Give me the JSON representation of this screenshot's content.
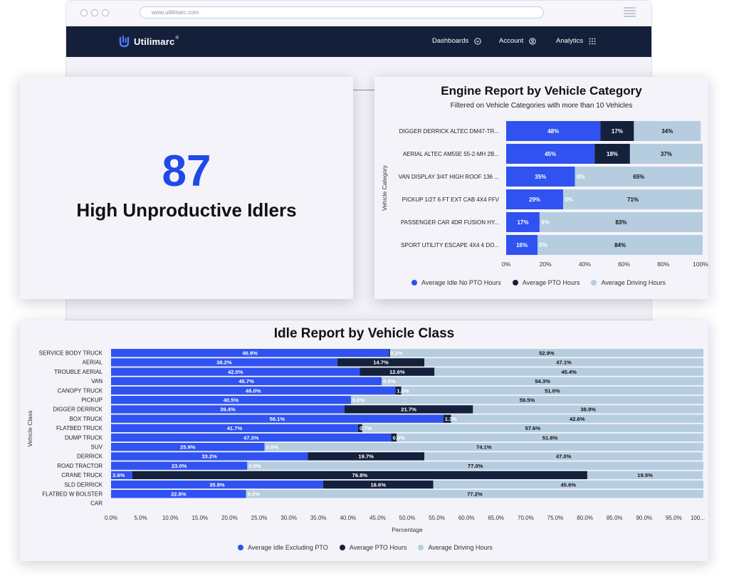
{
  "browser": {
    "url": "www.utilimarc.com"
  },
  "navbar": {
    "brand": "Utilimarc",
    "items": [
      {
        "label": "Dashboards"
      },
      {
        "label": "Account"
      },
      {
        "label": "Analytics"
      }
    ]
  },
  "kpi": {
    "value": "87",
    "label": "High Unproductive Idlers"
  },
  "colors": {
    "idle": "#2f52f0",
    "pto": "#13213d",
    "driving": "#b6cde0",
    "navbar": "#14203a",
    "kpi": "#2149e8"
  },
  "chart_data": [
    {
      "type": "bar",
      "orientation": "horizontal",
      "stacked": "percent",
      "title": "Engine Report by Vehicle Category",
      "subtitle": "Filtered on Vehicle Categories with more than 10 Vehicles",
      "xlabel": "",
      "ylabel": "Vehicle Category",
      "xlim": [
        0,
        100
      ],
      "x_ticks": [
        "0%",
        "20%",
        "40%",
        "60%",
        "80%",
        "100%"
      ],
      "categories": [
        "DIGGER DERRICK ALTEC DM47-TR...",
        "AERIAL ALTEC AM55E 55-2-MH 2B...",
        "VAN DISPLAY 3/4T HIGH ROOF 136 ...",
        "PICKUP 1/2T 6 FT EXT CAB 4X4 FFV",
        "PASSENGER CAR 4DR FUSION HY...",
        "SPORT UTILITY ESCAPE 4X4 4 DO..."
      ],
      "series": [
        {
          "name": "Average Idle No PTO Hours",
          "values": [
            48,
            45,
            35,
            29,
            17,
            16
          ]
        },
        {
          "name": "Average PTO Hours",
          "values": [
            17,
            18,
            0,
            0,
            0,
            0
          ]
        },
        {
          "name": "Average Driving Hours",
          "values": [
            34,
            37,
            65,
            71,
            83,
            84
          ]
        }
      ],
      "legend_position": "bottom"
    },
    {
      "type": "bar",
      "orientation": "horizontal",
      "stacked": "percent",
      "title": "Idle Report by Vehicle Class",
      "xlabel": "Percentage",
      "ylabel": "Vehicle Class",
      "xlim": [
        0,
        100
      ],
      "x_ticks": [
        "0.0%",
        "5.0%",
        "10.0%",
        "15.0%",
        "20.0%",
        "25.0%",
        "30.0%",
        "35.0%",
        "40.0%",
        "45.0%",
        "50.0%",
        "55.0%",
        "60.0%",
        "65.0%",
        "70.0%",
        "75.0%",
        "80.0%",
        "85.0%",
        "90.0%",
        "95.0%",
        "100..."
      ],
      "categories": [
        "SERVICE BODY TRUCK",
        "AERIAL",
        "TROUBLE AERIAL",
        "VAN",
        "CANOPY TRUCK",
        "PICKUP",
        "DIGGER DERRICK",
        "BOX TRUCK",
        "FLATBED TRUCK",
        "DUMP TRUCK",
        "SUV",
        "DERRICK",
        "ROAD TRACTOR",
        "CRANE TRUCK",
        "SLD DERRICK",
        "FLATBED W BOLSTER",
        "CAR"
      ],
      "series": [
        {
          "name": "Average Idle Excluding PTO",
          "values": [
            46.9,
            38.2,
            42.0,
            45.7,
            48.0,
            40.5,
            39.4,
            56.1,
            41.7,
            47.3,
            25.9,
            33.2,
            23.0,
            3.6,
            35.8,
            22.8,
            null
          ]
        },
        {
          "name": "Average PTO Hours",
          "values": [
            0.2,
            14.7,
            12.6,
            0.0,
            1.0,
            0.0,
            21.7,
            1.3,
            0.7,
            0.9,
            0.0,
            19.7,
            0.0,
            76.8,
            18.6,
            0.0,
            null
          ]
        },
        {
          "name": "Average Driving Hours",
          "values": [
            52.9,
            47.1,
            45.4,
            54.3,
            51.0,
            59.5,
            38.9,
            42.6,
            57.6,
            51.8,
            74.1,
            47.0,
            77.0,
            19.5,
            45.6,
            77.2,
            null
          ]
        }
      ],
      "legend_position": "bottom"
    }
  ]
}
